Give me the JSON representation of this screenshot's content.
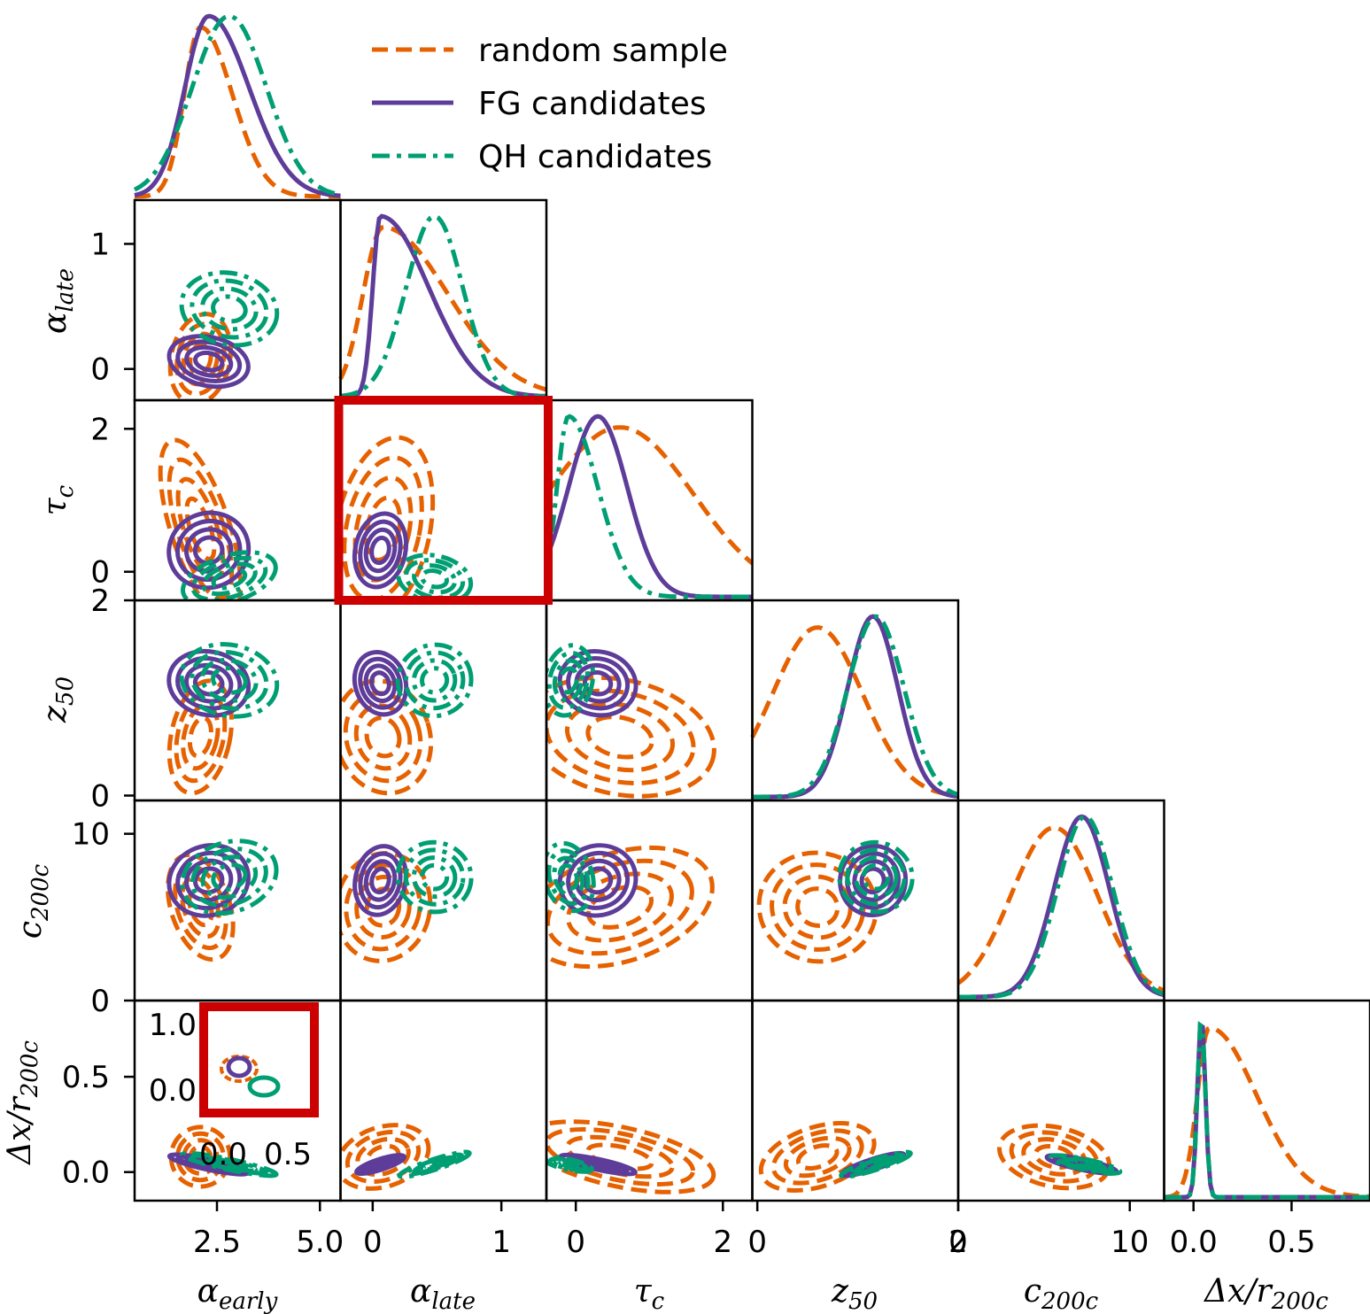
{
  "colors": {
    "random_sample": "#e66100",
    "fg_candidates": "#5e3c99",
    "qh_candidates": "#009e73",
    "highlight": "#cc0000"
  },
  "legend": {
    "items": [
      {
        "label": "random sample",
        "style": "dashed"
      },
      {
        "label": "FG candidates",
        "style": "solid"
      },
      {
        "label": "QH candidates",
        "style": "dashdot"
      }
    ],
    "placement": "top-center"
  },
  "chart_data": {
    "type": "corner",
    "variables": [
      {
        "key": "alpha_early",
        "ticks": [
          "2.5",
          "5.0"
        ],
        "tick_values": [
          2.5,
          5.0
        ],
        "range": [
          0.5,
          5.5
        ]
      },
      {
        "key": "alpha_late",
        "ticks": [
          "0",
          "1"
        ],
        "tick_values": [
          0,
          1
        ],
        "range": [
          -0.25,
          1.35
        ]
      },
      {
        "key": "tau_c",
        "ticks": [
          "0",
          "2"
        ],
        "tick_values": [
          0,
          2
        ],
        "range": [
          -0.4,
          2.4
        ]
      },
      {
        "key": "z_50",
        "ticks": [
          "0",
          "2"
        ],
        "tick_values": [
          0,
          2
        ],
        "range": [
          -0.05,
          2.0
        ]
      },
      {
        "key": "c_200c",
        "ticks": [
          "0",
          "10"
        ],
        "tick_values": [
          0,
          10
        ],
        "range": [
          0,
          12
        ]
      },
      {
        "key": "dx_r200c",
        "ticks": [
          "0.0",
          "0.5"
        ],
        "tick_values": [
          0.0,
          0.5
        ],
        "range": [
          -0.15,
          0.9
        ]
      }
    ],
    "row_ticks": {
      "alpha_late": [
        "0",
        "1"
      ],
      "tau_c": [
        "0",
        "2"
      ],
      "z_50": [
        "0",
        "2"
      ],
      "c_200c": [
        "0",
        "10"
      ],
      "dx_r200c": [
        "0.0",
        "0.5"
      ]
    },
    "distributions": {
      "random_sample": {
        "alpha_early": {
          "mode": 2.1,
          "width": 0.55,
          "skew": 1.4
        },
        "alpha_late": {
          "mode": 0.08,
          "width": 0.28,
          "skew": 1.8
        },
        "tau_c": {
          "mode": 0.6,
          "width": 1.0,
          "skew": 1.0
        },
        "z_50": {
          "mode": 0.6,
          "width": 0.45,
          "skew": 1.0
        },
        "c_200c": {
          "mode": 5.6,
          "width": 2.5,
          "skew": 1.0
        },
        "dx_r200c": {
          "mode": 0.08,
          "width": 0.12,
          "skew": 2.0
        }
      },
      "fg_candidates": {
        "alpha_early": {
          "mode": 2.3,
          "width": 0.75,
          "skew": 1.3
        },
        "alpha_late": {
          "mode": 0.06,
          "width": 0.15,
          "skew": 2.5
        },
        "tau_c": {
          "mode": 0.3,
          "width": 0.4,
          "skew": 1.0
        },
        "z_50": {
          "mode": 1.15,
          "width": 0.25,
          "skew": 1.0
        },
        "c_200c": {
          "mode": 7.2,
          "width": 1.6,
          "skew": 1.0
        },
        "dx_r200c": {
          "mode": 0.04,
          "width": 0.02,
          "skew": 1.0
        }
      },
      "qh_candidates": {
        "alpha_early": {
          "mode": 2.8,
          "width": 0.9,
          "skew": 1.0
        },
        "alpha_late": {
          "mode": 0.48,
          "width": 0.22,
          "skew": 1.0
        },
        "tau_c": {
          "mode": -0.1,
          "width": 0.25,
          "skew": 1.6
        },
        "z_50": {
          "mode": 1.18,
          "width": 0.28,
          "skew": 1.0
        },
        "c_200c": {
          "mode": 7.4,
          "width": 1.6,
          "skew": 1.0
        },
        "dx_r200c": {
          "mode": 0.04,
          "width": 0.02,
          "skew": 1.0
        }
      }
    },
    "highlight_panel": {
      "row": "tau_c",
      "column": "alpha_late"
    },
    "inset": {
      "location": "dx_r200c vs alpha_early panel",
      "x_ticks": [
        "0.0",
        "0.5"
      ],
      "y_ticks": [
        "1.0",
        "0.0",
        "0.5"
      ],
      "note_ticks": [
        "0.0",
        "0.5"
      ]
    }
  }
}
